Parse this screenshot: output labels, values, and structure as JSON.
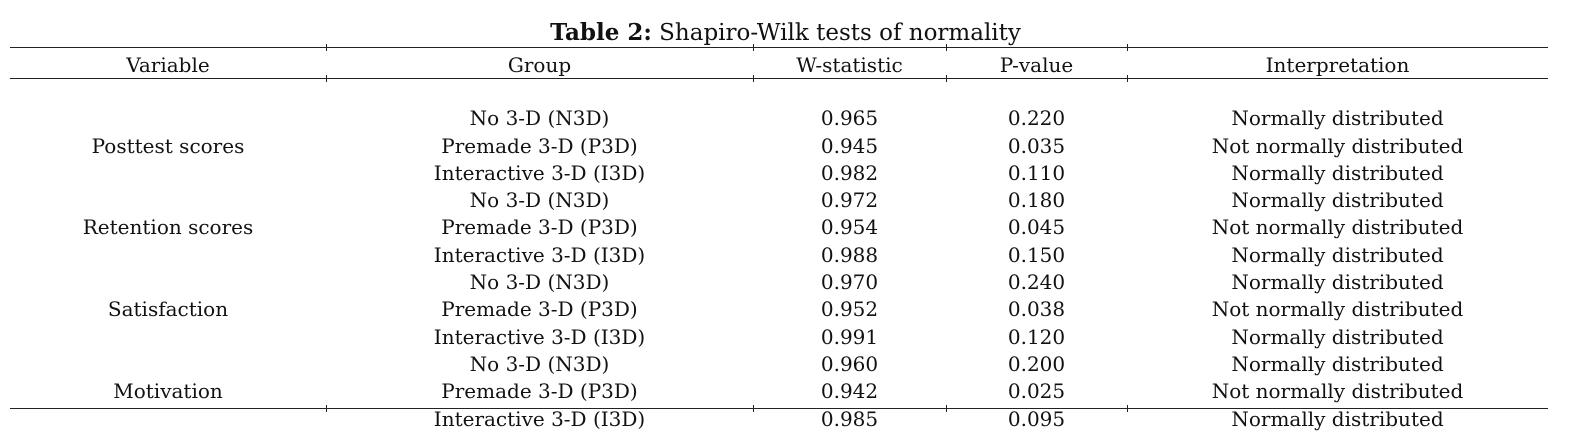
{
  "caption": {
    "label": "Table 2:",
    "title": "Shapiro-Wilk tests of normality"
  },
  "columns": [
    "Variable",
    "Group",
    "W-statistic",
    "P-value",
    "Interpretation"
  ],
  "variables": [
    {
      "name": "Posttest scores",
      "rows": [
        {
          "group": "No 3-D (N3D)",
          "w": "0.965",
          "p": "0.220",
          "interpretation": "Normally distributed"
        },
        {
          "group": "Premade 3-D (P3D)",
          "w": "0.945",
          "p": "0.035",
          "interpretation": "Not normally distributed"
        },
        {
          "group": "Interactive 3-D (I3D)",
          "w": "0.982",
          "p": "0.110",
          "interpretation": "Normally distributed"
        }
      ]
    },
    {
      "name": "Retention scores",
      "rows": [
        {
          "group": "No 3-D (N3D)",
          "w": "0.972",
          "p": "0.180",
          "interpretation": "Normally distributed"
        },
        {
          "group": "Premade 3-D (P3D)",
          "w": "0.954",
          "p": "0.045",
          "interpretation": "Not normally distributed"
        },
        {
          "group": "Interactive 3-D (I3D)",
          "w": "0.988",
          "p": "0.150",
          "interpretation": "Normally distributed"
        }
      ]
    },
    {
      "name": "Satisfaction",
      "rows": [
        {
          "group": "No 3-D (N3D)",
          "w": "0.970",
          "p": "0.240",
          "interpretation": "Normally distributed"
        },
        {
          "group": "Premade 3-D (P3D)",
          "w": "0.952",
          "p": "0.038",
          "interpretation": "Not normally distributed"
        },
        {
          "group": "Interactive 3-D (I3D)",
          "w": "0.991",
          "p": "0.120",
          "interpretation": "Normally distributed"
        }
      ]
    },
    {
      "name": "Motivation",
      "rows": [
        {
          "group": "No 3-D (N3D)",
          "w": "0.960",
          "p": "0.200",
          "interpretation": "Normally distributed"
        },
        {
          "group": "Premade 3-D (P3D)",
          "w": "0.942",
          "p": "0.025",
          "interpretation": "Not normally distributed"
        },
        {
          "group": "Interactive 3-D (I3D)",
          "w": "0.985",
          "p": "0.095",
          "interpretation": "Normally distributed"
        }
      ]
    }
  ]
}
